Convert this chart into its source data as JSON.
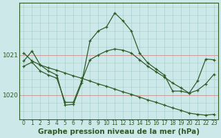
{
  "title": "Graphe pression niveau de la mer (hPa)",
  "background_color": "#cce8e8",
  "plot_bg_color": "#cce8e8",
  "vgrid_color": "#aacece",
  "hgrid_color_minor": "#aacece",
  "hgrid_color_major": "#cc9999",
  "line_color": "#2d5a27",
  "line1": [
    1020.85,
    1021.1,
    1020.75,
    1020.6,
    1020.5,
    1019.75,
    1019.77,
    1020.3,
    1021.35,
    1021.6,
    1021.7,
    1022.05,
    1021.85,
    1021.6,
    1021.05,
    1020.8,
    1020.65,
    1020.5,
    1020.1,
    1020.1,
    1020.05,
    1020.35,
    1020.9,
    1020.88
  ],
  "line2": [
    1021.05,
    1020.85,
    1020.75,
    1020.68,
    1020.62,
    1020.55,
    1020.48,
    1020.42,
    1020.35,
    1020.28,
    1020.22,
    1020.15,
    1020.08,
    1020.02,
    1019.95,
    1019.88,
    1019.82,
    1019.75,
    1019.68,
    1019.62,
    1019.55,
    1019.52,
    1019.5,
    1019.52
  ],
  "line3": [
    1020.72,
    1020.82,
    1020.6,
    1020.5,
    1020.42,
    1019.82,
    1019.82,
    1020.35,
    1020.88,
    1021.0,
    1021.1,
    1021.15,
    1021.12,
    1021.05,
    1020.88,
    1020.72,
    1020.58,
    1020.45,
    1020.3,
    1020.18,
    1020.05,
    1020.12,
    1020.28,
    1020.52
  ],
  "xlim": [
    -0.5,
    23.5
  ],
  "ylim": [
    1019.4,
    1022.3
  ],
  "yticks": [
    1020,
    1021
  ],
  "xticks": [
    0,
    1,
    2,
    3,
    4,
    5,
    6,
    7,
    8,
    9,
    10,
    11,
    12,
    13,
    14,
    15,
    16,
    17,
    18,
    19,
    20,
    21,
    22,
    23
  ],
  "title_fontsize": 7.5,
  "marker": "+"
}
